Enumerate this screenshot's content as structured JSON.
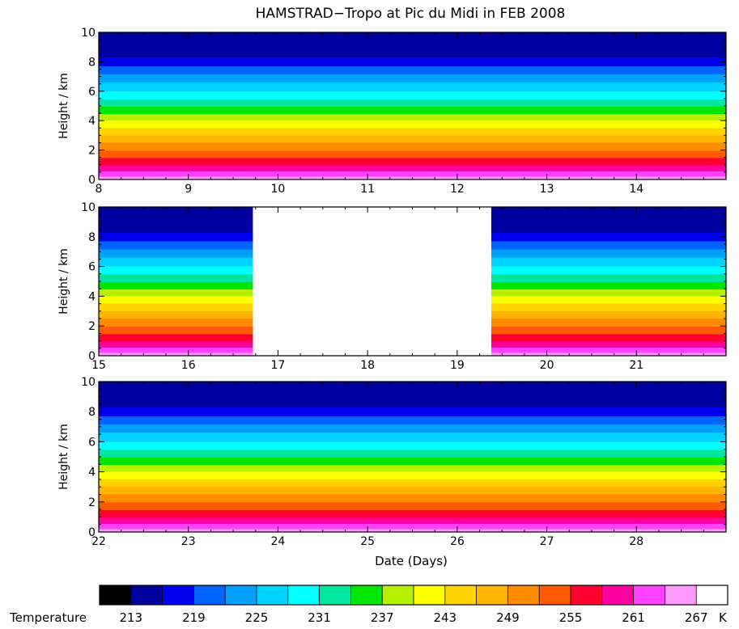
{
  "chart_data": {
    "type": "heatmap",
    "title": "HAMSTRAD−Tropo at Pic du Midi in FEB 2008",
    "xlabel": "Date (Days)",
    "ylabel": "Height / km",
    "ylim": [
      0,
      10
    ],
    "y_ticks": [
      0,
      2,
      4,
      6,
      8,
      10
    ],
    "panels": [
      {
        "xlim": [
          8,
          15
        ],
        "x_ticks": [
          8,
          9,
          10,
          11,
          12,
          13,
          14
        ],
        "data_gaps": []
      },
      {
        "xlim": [
          15,
          22
        ],
        "x_ticks": [
          15,
          16,
          17,
          18,
          19,
          20,
          21
        ],
        "data_gaps": [
          [
            16.72,
            19.38
          ]
        ]
      },
      {
        "xlim": [
          22,
          29
        ],
        "x_ticks": [
          22,
          23,
          24,
          25,
          26,
          27,
          28
        ],
        "data_gaps": []
      }
    ],
    "colorbar": {
      "label": "Temperature",
      "unit": "K",
      "tick_labels": [
        "213",
        "219",
        "225",
        "231",
        "237",
        "243",
        "249",
        "255",
        "261",
        "267"
      ],
      "levels_start": 210,
      "level_step": 3,
      "colors": [
        "#000000",
        "#0000a0",
        "#0000f0",
        "#0064ff",
        "#00a0ff",
        "#00d2ff",
        "#00ffff",
        "#00e6a0",
        "#00e600",
        "#b4f000",
        "#ffff00",
        "#ffd200",
        "#ffb400",
        "#ff8c00",
        "#ff5a00",
        "#ff0030",
        "#ff00a0",
        "#ff40ff",
        "#ff9bff",
        "#ffffff"
      ]
    }
  }
}
